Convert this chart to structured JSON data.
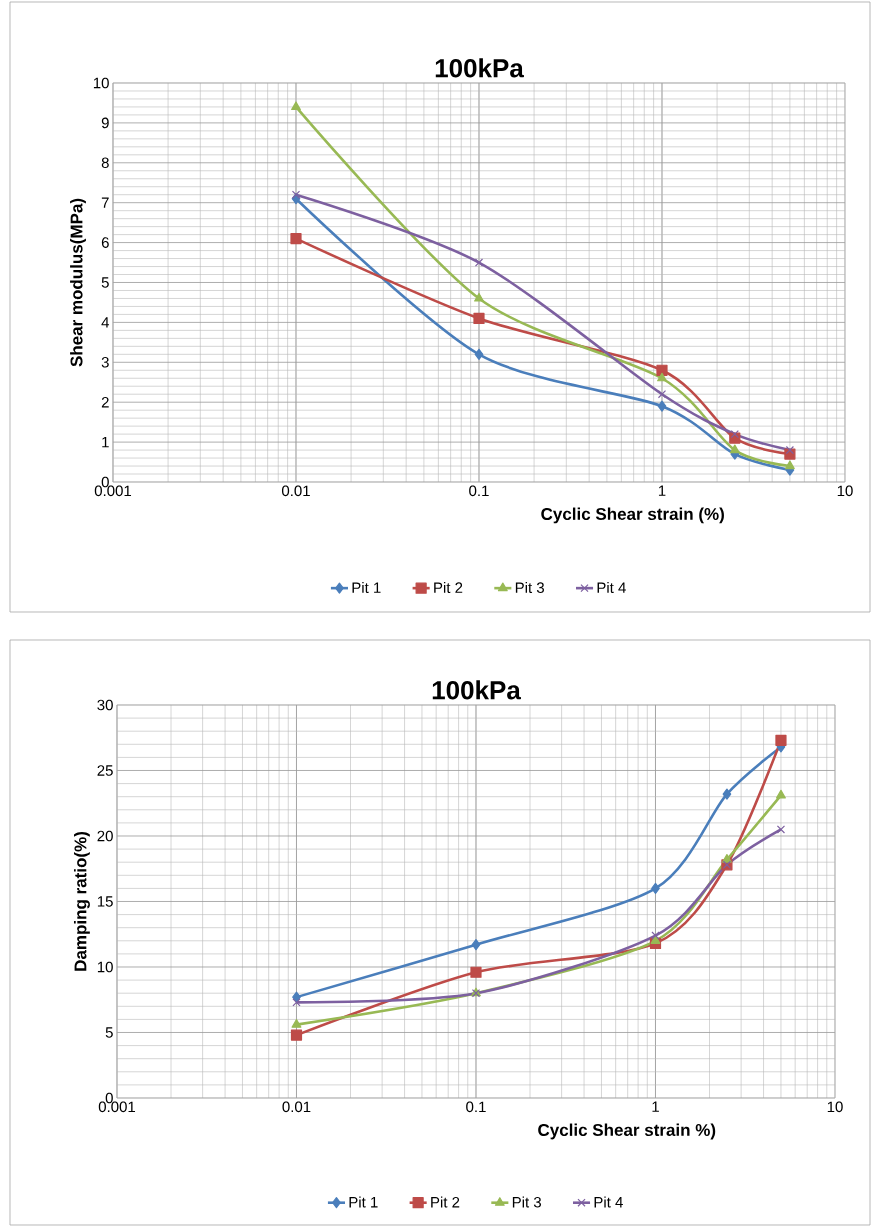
{
  "chart_data": [
    {
      "type": "line",
      "title": "100kPa",
      "xlabel": "Cyclic Shear strain (%)",
      "ylabel": "Shear modulus(MPa)",
      "log": "x",
      "grid": true,
      "legend": "bottom",
      "xlim": [
        0.001,
        10
      ],
      "xticks": [
        0.001,
        0.01,
        0.1,
        1,
        10
      ],
      "ylim": [
        0,
        10
      ],
      "yticks": [
        0,
        1,
        2,
        3,
        4,
        5,
        6,
        7,
        8,
        9,
        10
      ],
      "x": [
        0.01,
        0.1,
        1,
        2.5,
        5
      ],
      "series": [
        {
          "name": "Pit 1",
          "color": "#4a7ebb",
          "marker": "diamond",
          "values": [
            7.1,
            3.2,
            1.9,
            0.7,
            0.3
          ]
        },
        {
          "name": "Pit 2",
          "color": "#be4b48",
          "marker": "square",
          "values": [
            6.1,
            4.1,
            2.8,
            1.1,
            0.7
          ]
        },
        {
          "name": "Pit 3",
          "color": "#98b954",
          "marker": "triangle",
          "values": [
            9.4,
            4.6,
            2.6,
            0.8,
            0.4
          ]
        },
        {
          "name": "Pit 4",
          "color": "#7d60a0",
          "marker": "cross",
          "values": [
            7.2,
            5.5,
            2.2,
            1.2,
            0.8
          ]
        }
      ]
    },
    {
      "type": "line",
      "title": "100kPa",
      "xlabel": "Cyclic Shear strain %)",
      "ylabel": "Damping ratio(%)",
      "log": "x",
      "grid": true,
      "legend": "bottom",
      "xlim": [
        0.001,
        10
      ],
      "xticks": [
        0.001,
        0.01,
        0.1,
        1,
        10
      ],
      "ylim": [
        0,
        30
      ],
      "yticks": [
        0,
        5,
        10,
        15,
        20,
        25,
        30
      ],
      "x": [
        0.01,
        0.1,
        1,
        2.5,
        5
      ],
      "series": [
        {
          "name": "Pit 1",
          "color": "#4a7ebb",
          "marker": "diamond",
          "values": [
            7.7,
            11.7,
            16.0,
            23.2,
            26.8
          ]
        },
        {
          "name": "Pit 2",
          "color": "#be4b48",
          "marker": "square",
          "values": [
            4.8,
            9.6,
            11.8,
            17.8,
            27.3
          ]
        },
        {
          "name": "Pit 3",
          "color": "#98b954",
          "marker": "triangle",
          "values": [
            5.6,
            8.0,
            12.0,
            18.2,
            23.1
          ]
        },
        {
          "name": "Pit 4",
          "color": "#7d60a0",
          "marker": "cross",
          "values": [
            7.3,
            8.0,
            12.4,
            17.8,
            20.5
          ]
        }
      ]
    }
  ]
}
